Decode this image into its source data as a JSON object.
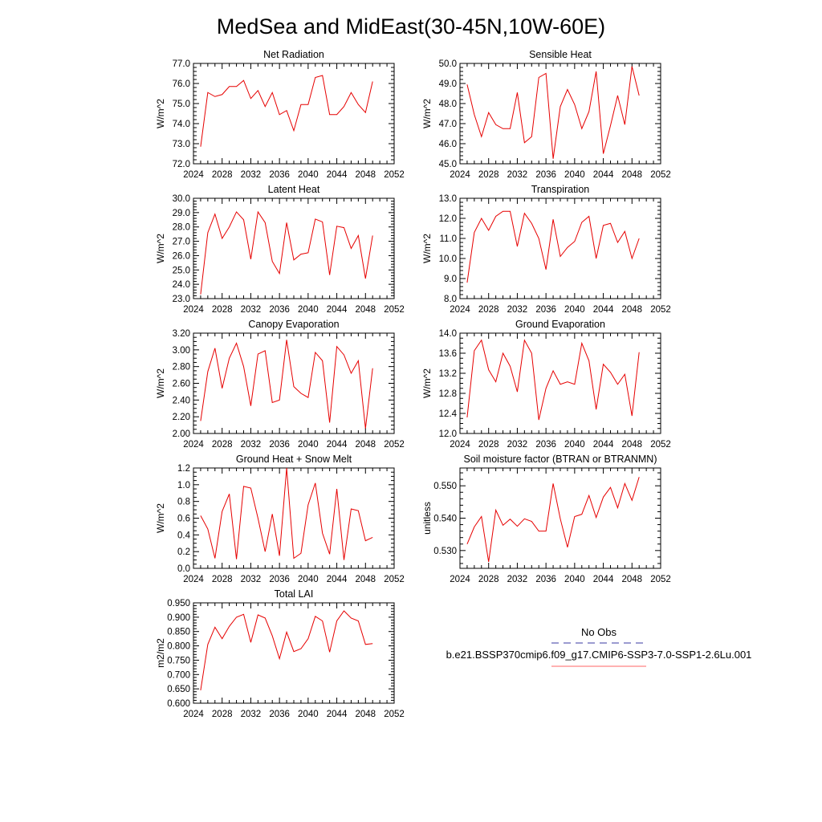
{
  "title": "MedSea and MidEast(30-45N,10W-60E)",
  "legend": {
    "items": [
      {
        "label": "No Obs",
        "color": "#3a3aa0",
        "dash": true
      },
      {
        "label": "b.e21.BSSP370cmip6.f09_g17.CMIP6-SSP3-7.0-SSP1-2.6Lu.001",
        "color": "#ff6666",
        "dash": false
      }
    ]
  },
  "chart_data": [
    {
      "type": "line",
      "title": "Net Radiation",
      "ylabel": "W/m^2",
      "xlim": [
        2024,
        2052
      ],
      "xticks": [
        "2024",
        "2028",
        "2032",
        "2036",
        "2040",
        "2044",
        "2048",
        "2052"
      ],
      "ylim": [
        72.0,
        77.0
      ],
      "yticks": [
        "72.0",
        "73.0",
        "74.0",
        "75.0",
        "76.0",
        "77.0"
      ],
      "yminor": 4,
      "series": [
        {
          "color": "#e60000",
          "x": [
            2025,
            2026,
            2027,
            2028,
            2029,
            2030,
            2031,
            2032,
            2033,
            2034,
            2035,
            2036,
            2037,
            2038,
            2039,
            2040,
            2041,
            2042,
            2043,
            2044,
            2045,
            2046,
            2047,
            2048,
            2049
          ],
          "y": [
            72.85,
            75.55,
            75.35,
            75.45,
            75.85,
            75.85,
            76.15,
            75.25,
            75.65,
            74.85,
            75.55,
            74.45,
            74.65,
            73.65,
            74.95,
            74.95,
            76.3,
            76.4,
            74.45,
            74.45,
            74.85,
            75.55,
            74.95,
            74.55,
            76.1
          ]
        }
      ]
    },
    {
      "type": "line",
      "title": "Sensible Heat",
      "ylabel": "W/m^2",
      "xlim": [
        2024,
        2052
      ],
      "xticks": [
        "2024",
        "2028",
        "2032",
        "2036",
        "2040",
        "2044",
        "2048",
        "2052"
      ],
      "ylim": [
        45.0,
        50.0
      ],
      "yticks": [
        "45.0",
        "46.0",
        "47.0",
        "48.0",
        "49.0",
        "50.0"
      ],
      "yminor": 4,
      "series": [
        {
          "color": "#e60000",
          "x": [
            2025,
            2026,
            2027,
            2028,
            2029,
            2030,
            2031,
            2032,
            2033,
            2034,
            2035,
            2036,
            2037,
            2038,
            2039,
            2040,
            2041,
            2042,
            2043,
            2044,
            2045,
            2046,
            2047,
            2048,
            2049
          ],
          "y": [
            48.95,
            47.45,
            46.35,
            47.55,
            46.95,
            46.75,
            46.75,
            48.55,
            46.05,
            46.35,
            49.3,
            49.5,
            45.25,
            47.85,
            48.7,
            47.95,
            46.75,
            47.6,
            49.6,
            45.5,
            46.9,
            48.4,
            46.95,
            49.85,
            48.4
          ]
        }
      ]
    },
    {
      "type": "line",
      "title": "Latent Heat",
      "ylabel": "W/m^2",
      "xlim": [
        2024,
        2052
      ],
      "xticks": [
        "2024",
        "2028",
        "2032",
        "2036",
        "2040",
        "2044",
        "2048",
        "2052"
      ],
      "ylim": [
        23.0,
        30.0
      ],
      "yticks": [
        "23.0",
        "24.0",
        "25.0",
        "26.0",
        "27.0",
        "28.0",
        "29.0",
        "30.0"
      ],
      "yminor": 4,
      "series": [
        {
          "color": "#e60000",
          "x": [
            2025,
            2026,
            2027,
            2028,
            2029,
            2030,
            2031,
            2032,
            2033,
            2034,
            2035,
            2036,
            2037,
            2038,
            2039,
            2040,
            2041,
            2042,
            2043,
            2044,
            2045,
            2046,
            2047,
            2048,
            2049
          ],
          "y": [
            23.3,
            27.6,
            28.9,
            27.2,
            28.0,
            29.05,
            28.5,
            25.75,
            29.05,
            28.3,
            25.6,
            24.75,
            28.3,
            25.7,
            26.1,
            26.2,
            28.55,
            28.35,
            24.65,
            28.05,
            27.95,
            26.5,
            27.4,
            24.4,
            27.4
          ]
        }
      ]
    },
    {
      "type": "line",
      "title": "Transpiration",
      "ylabel": "W/m^2",
      "xlim": [
        2024,
        2052
      ],
      "xticks": [
        "2024",
        "2028",
        "2032",
        "2036",
        "2040",
        "2044",
        "2048",
        "2052"
      ],
      "ylim": [
        8.0,
        13.0
      ],
      "yticks": [
        "8.0",
        "9.0",
        "10.0",
        "11.0",
        "12.0",
        "13.0"
      ],
      "yminor": 4,
      "series": [
        {
          "color": "#e60000",
          "x": [
            2025,
            2026,
            2027,
            2028,
            2029,
            2030,
            2031,
            2032,
            2033,
            2034,
            2035,
            2036,
            2037,
            2038,
            2039,
            2040,
            2041,
            2042,
            2043,
            2044,
            2045,
            2046,
            2047,
            2048,
            2049
          ],
          "y": [
            8.8,
            11.3,
            12.0,
            11.4,
            12.1,
            12.35,
            12.35,
            10.6,
            12.25,
            11.75,
            11.0,
            9.45,
            11.95,
            10.1,
            10.55,
            10.85,
            11.8,
            12.1,
            10.0,
            11.65,
            11.75,
            10.8,
            11.35,
            10.0,
            11.0
          ]
        }
      ]
    },
    {
      "type": "line",
      "title": "Canopy Evaporation",
      "ylabel": "W/m^2",
      "xlim": [
        2024,
        2052
      ],
      "xticks": [
        "2024",
        "2028",
        "2032",
        "2036",
        "2040",
        "2044",
        "2048",
        "2052"
      ],
      "ylim": [
        2.0,
        3.2
      ],
      "yticks": [
        "2.00",
        "2.20",
        "2.40",
        "2.60",
        "2.80",
        "3.00",
        "3.20"
      ],
      "yminor": 3,
      "series": [
        {
          "color": "#e60000",
          "x": [
            2025,
            2026,
            2027,
            2028,
            2029,
            2030,
            2031,
            2032,
            2033,
            2034,
            2035,
            2036,
            2037,
            2038,
            2039,
            2040,
            2041,
            2042,
            2043,
            2044,
            2045,
            2046,
            2047,
            2048,
            2049
          ],
          "y": [
            2.15,
            2.74,
            3.02,
            2.54,
            2.9,
            3.08,
            2.8,
            2.33,
            2.95,
            2.99,
            2.37,
            2.4,
            3.12,
            2.56,
            2.48,
            2.43,
            2.97,
            2.87,
            2.13,
            3.04,
            2.94,
            2.72,
            2.87,
            2.06,
            2.78
          ]
        }
      ]
    },
    {
      "type": "line",
      "title": "Ground Evaporation",
      "ylabel": "W/m^2",
      "xlim": [
        2024,
        2052
      ],
      "xticks": [
        "2024",
        "2028",
        "2032",
        "2036",
        "2040",
        "2044",
        "2048",
        "2052"
      ],
      "ylim": [
        12.0,
        14.0
      ],
      "yticks": [
        "12.0",
        "12.4",
        "12.8",
        "13.2",
        "13.6",
        "14.0"
      ],
      "yminor": 3,
      "series": [
        {
          "color": "#e60000",
          "x": [
            2025,
            2026,
            2027,
            2028,
            2029,
            2030,
            2031,
            2032,
            2033,
            2034,
            2035,
            2036,
            2037,
            2038,
            2039,
            2040,
            2041,
            2042,
            2043,
            2044,
            2045,
            2046,
            2047,
            2048,
            2049
          ],
          "y": [
            12.32,
            13.65,
            13.86,
            13.27,
            13.03,
            13.6,
            13.34,
            12.83,
            13.86,
            13.6,
            12.27,
            12.9,
            13.25,
            12.98,
            13.03,
            12.98,
            13.8,
            13.45,
            12.48,
            13.38,
            13.22,
            12.98,
            13.18,
            12.35,
            13.62
          ]
        }
      ]
    },
    {
      "type": "line",
      "title": "Ground Heat + Snow Melt",
      "ylabel": "W/m^2",
      "xlim": [
        2024,
        2052
      ],
      "xticks": [
        "2024",
        "2028",
        "2032",
        "2036",
        "2040",
        "2044",
        "2048",
        "2052"
      ],
      "ylim": [
        0.0,
        1.2
      ],
      "yticks": [
        "0.0",
        "0.2",
        "0.4",
        "0.6",
        "0.8",
        "1.0",
        "1.2"
      ],
      "yminor": 3,
      "series": [
        {
          "color": "#e60000",
          "x": [
            2025,
            2026,
            2027,
            2028,
            2029,
            2030,
            2031,
            2032,
            2033,
            2034,
            2035,
            2036,
            2037,
            2038,
            2039,
            2040,
            2041,
            2042,
            2043,
            2044,
            2045,
            2046,
            2047,
            2048,
            2049
          ],
          "y": [
            0.63,
            0.47,
            0.12,
            0.68,
            0.89,
            0.11,
            0.98,
            0.96,
            0.6,
            0.2,
            0.65,
            0.15,
            1.2,
            0.12,
            0.18,
            0.76,
            1.02,
            0.42,
            0.17,
            0.95,
            0.1,
            0.71,
            0.69,
            0.33,
            0.37
          ]
        }
      ]
    },
    {
      "type": "line",
      "title": "Soil moisture factor (BTRAN or BTRANMN)",
      "ylabel": "unitless",
      "xlim": [
        2024,
        2052
      ],
      "xticks": [
        "2024",
        "2028",
        "2032",
        "2036",
        "2040",
        "2044",
        "2048",
        "2052"
      ],
      "ylim": [
        0.5245,
        0.5555
      ],
      "yticks": [
        "0.530",
        "0.540",
        "0.550"
      ],
      "ytickvals": [
        0.53,
        0.54,
        0.55
      ],
      "yminor": 4,
      "series": [
        {
          "color": "#e60000",
          "x": [
            2025,
            2026,
            2027,
            2028,
            2029,
            2030,
            2031,
            2032,
            2033,
            2034,
            2035,
            2036,
            2037,
            2038,
            2039,
            2040,
            2041,
            2042,
            2043,
            2044,
            2045,
            2046,
            2047,
            2048,
            2049
          ],
          "y": [
            0.532,
            0.5373,
            0.5405,
            0.5265,
            0.5425,
            0.5378,
            0.5397,
            0.5375,
            0.5398,
            0.539,
            0.536,
            0.536,
            0.5507,
            0.5398,
            0.531,
            0.5405,
            0.5412,
            0.547,
            0.5402,
            0.5465,
            0.5495,
            0.5432,
            0.5507,
            0.5455,
            0.5527
          ]
        }
      ]
    },
    {
      "type": "line",
      "title": "Total LAI",
      "ylabel": "m2/m2",
      "xlim": [
        2024,
        2052
      ],
      "xticks": [
        "2024",
        "2028",
        "2032",
        "2036",
        "2040",
        "2044",
        "2048",
        "2052"
      ],
      "ylim": [
        0.6,
        0.95
      ],
      "yticks": [
        "0.600",
        "0.650",
        "0.700",
        "0.750",
        "0.800",
        "0.850",
        "0.900",
        "0.950"
      ],
      "yminor": 4,
      "series": [
        {
          "color": "#e60000",
          "x": [
            2025,
            2026,
            2027,
            2028,
            2029,
            2030,
            2031,
            2032,
            2033,
            2034,
            2035,
            2036,
            2037,
            2038,
            2039,
            2040,
            2041,
            2042,
            2043,
            2044,
            2045,
            2046,
            2047,
            2048,
            2049
          ],
          "y": [
            0.645,
            0.805,
            0.865,
            0.825,
            0.868,
            0.9,
            0.91,
            0.812,
            0.908,
            0.897,
            0.835,
            0.755,
            0.848,
            0.78,
            0.79,
            0.825,
            0.903,
            0.887,
            0.778,
            0.887,
            0.922,
            0.897,
            0.887,
            0.805,
            0.808
          ]
        }
      ]
    }
  ]
}
